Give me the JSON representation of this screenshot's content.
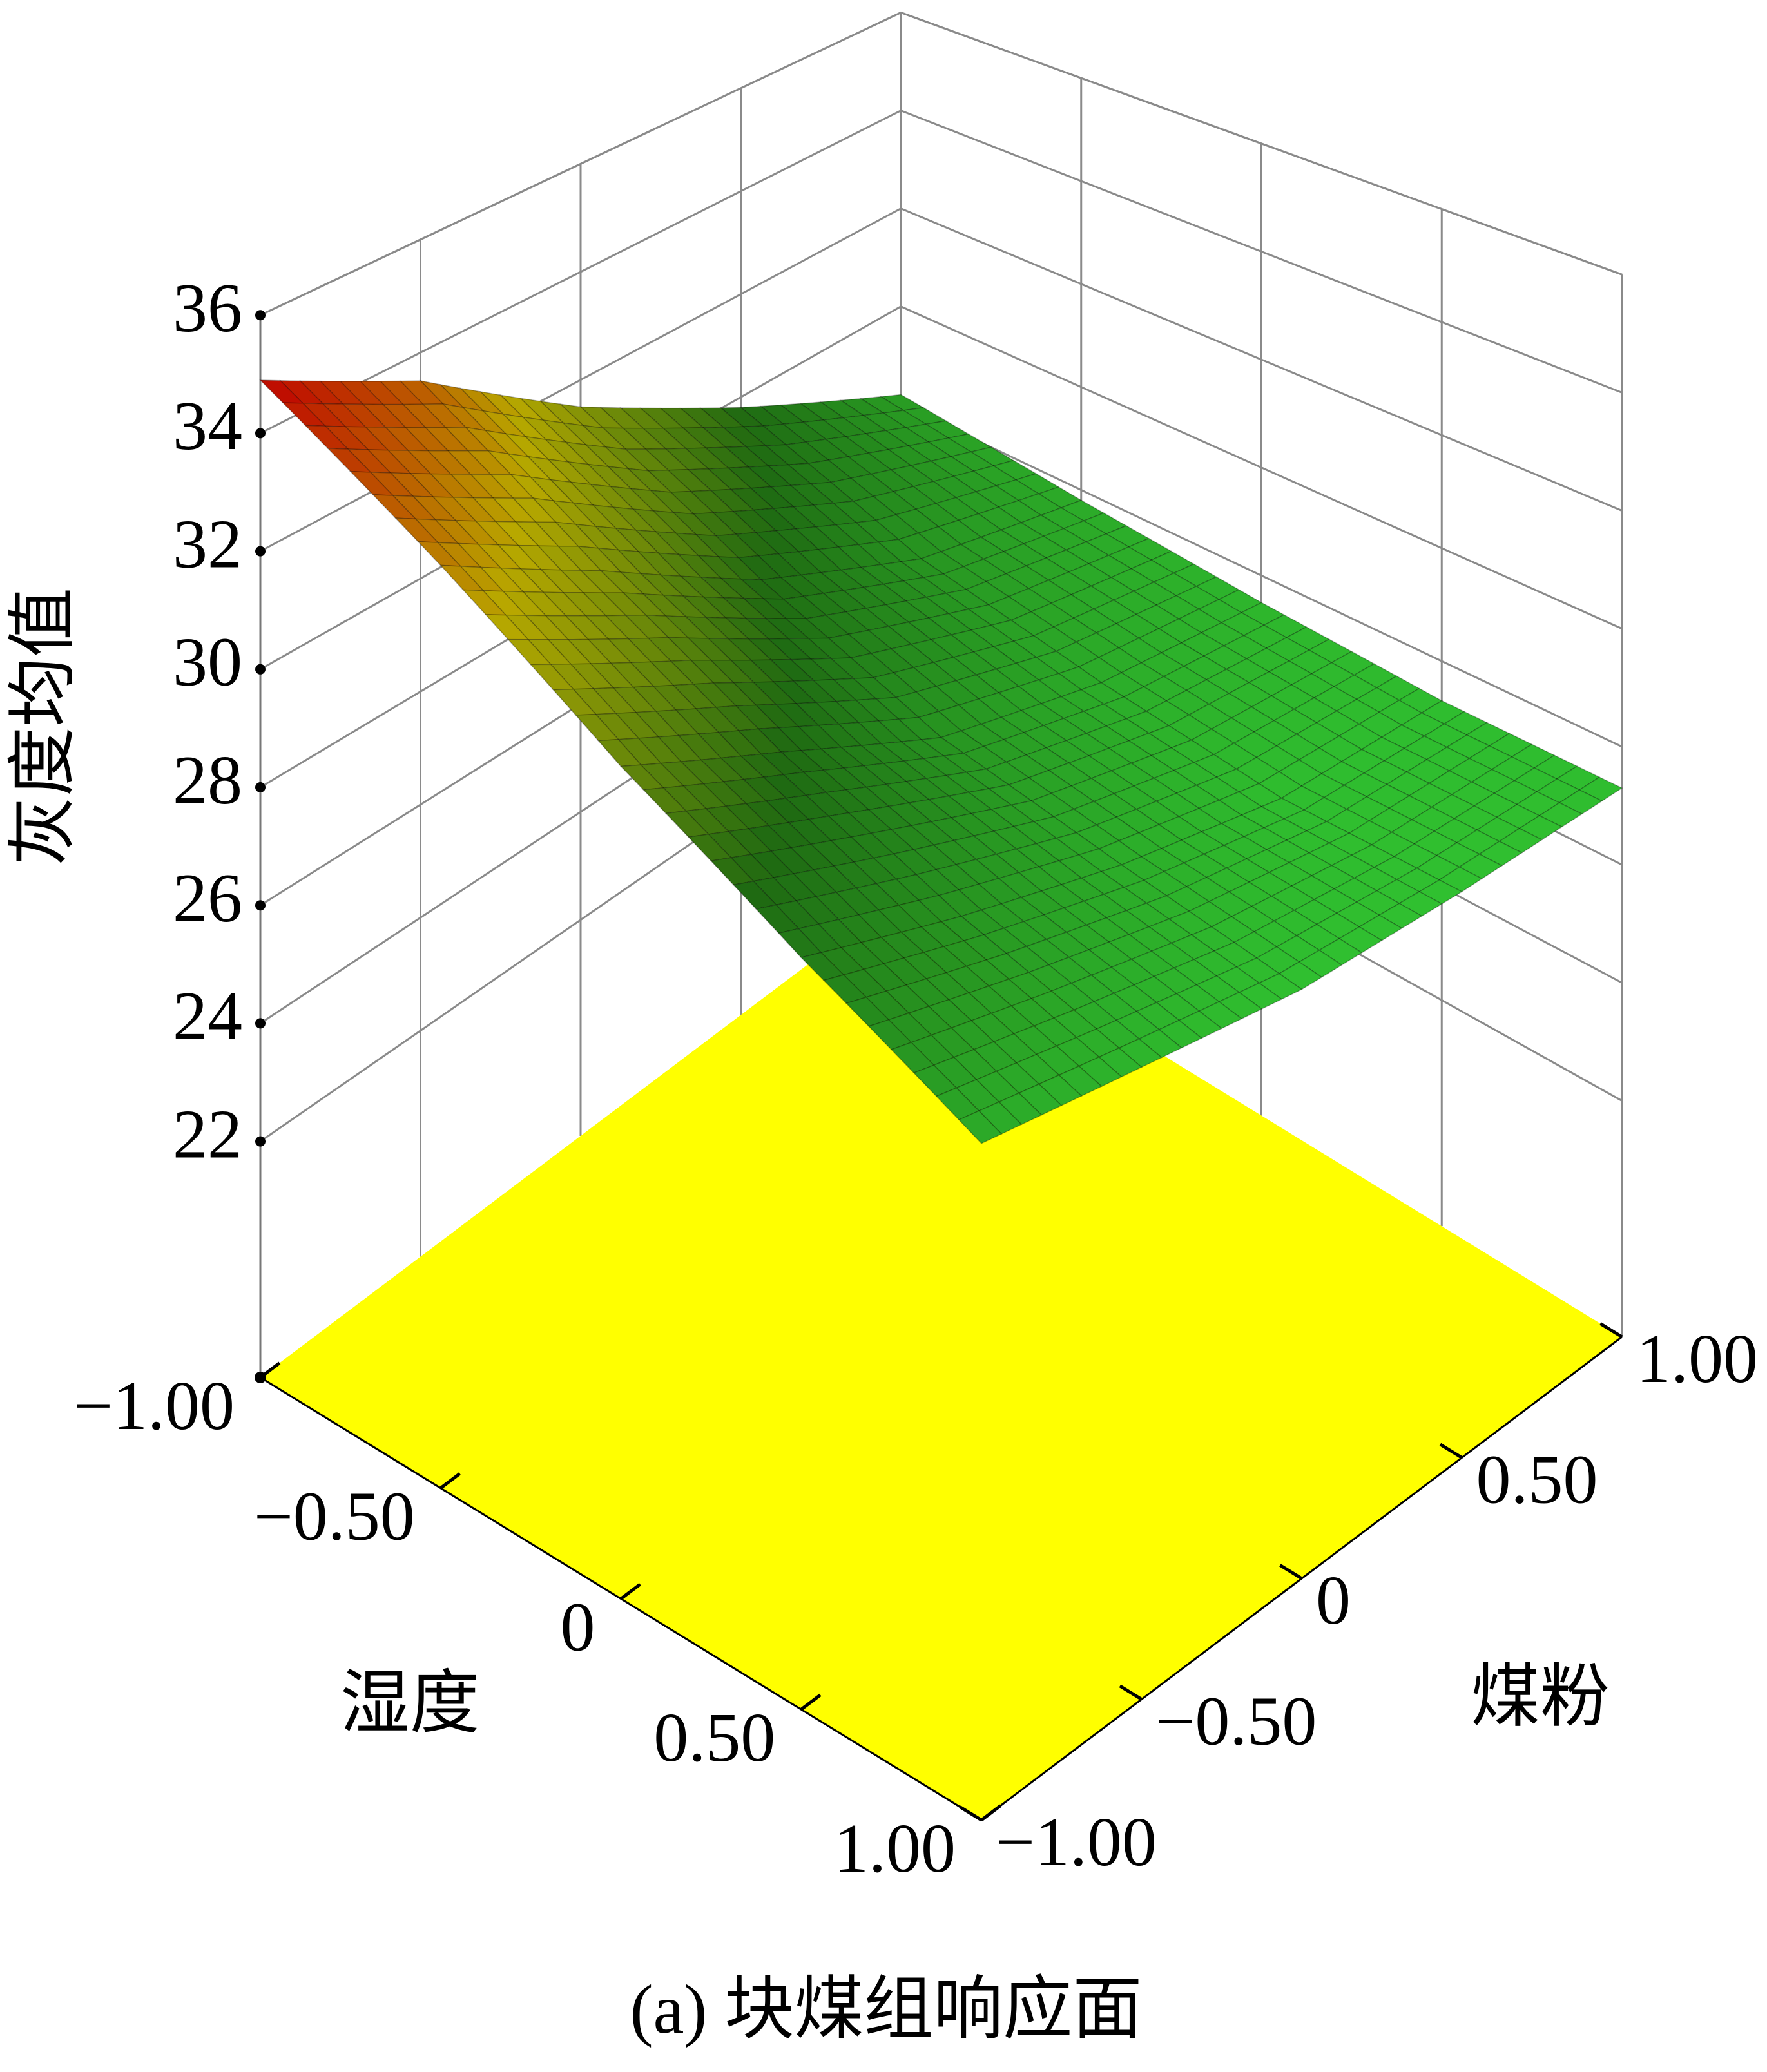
{
  "chart_data": {
    "type": "surface",
    "caption": "(a) 块煤组响应面",
    "xlabel": "湿度",
    "ylabel": "煤粉",
    "zlabel": "灰度均值",
    "x": [
      -1,
      -0.5,
      0,
      0.5,
      1
    ],
    "y": [
      -1,
      -0.5,
      0,
      0.5,
      1
    ],
    "z": [
      [
        34.9,
        33.5,
        31.5,
        29.8,
        28.2
      ],
      [
        33.0,
        31.5,
        29.8,
        28.5,
        27.8
      ],
      [
        31.0,
        29.8,
        28.5,
        27.8,
        27.5
      ],
      [
        29.3,
        28.5,
        27.8,
        27.3,
        27.3
      ],
      [
        27.8,
        27.5,
        27.2,
        27.2,
        27.3
      ]
    ],
    "xlim": [
      -1,
      1
    ],
    "ylim": [
      -1,
      1
    ],
    "zlim": [
      18,
      36
    ],
    "xticks": [
      {
        "value": -1,
        "label": "−1.00"
      },
      {
        "value": -0.5,
        "label": "−0.50"
      },
      0,
      {
        "value": 0.5,
        "label": "0.50"
      },
      {
        "value": 1,
        "label": "1.00"
      }
    ],
    "yticks": [
      {
        "value": -1,
        "label": "−1.00"
      },
      {
        "value": -0.5,
        "label": "−0.50"
      },
      0,
      {
        "value": 0.5,
        "label": "0.50"
      },
      {
        "value": 1,
        "label": "1.00"
      }
    ],
    "zticks": [
      22,
      24,
      26,
      28,
      30,
      32,
      34,
      36
    ],
    "colormap": [
      "#30c030",
      "#1f6a12",
      "#b8a800",
      "#c00000"
    ],
    "floor_color": "#ffff00",
    "grid": true
  }
}
